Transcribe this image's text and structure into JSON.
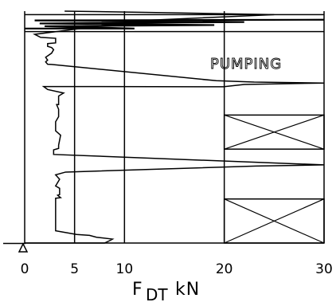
{
  "chart_data": {
    "type": "line",
    "title": "",
    "xlabel": {
      "main": "F",
      "subscript": "DT",
      "unit": "kN"
    },
    "ylabel": "",
    "xlim": [
      0,
      30
    ],
    "ylim": [
      0,
      1
    ],
    "x_ticks": [
      "0",
      "5",
      "10",
      "20",
      "30"
    ],
    "grid": true,
    "zone_label": "PUMPING",
    "x_tick_map": [
      {
        "label": "0",
        "value": 0
      },
      {
        "label": "5",
        "value": 5
      },
      {
        "label": "10",
        "value": 10
      },
      {
        "label": "20",
        "value": 20
      },
      {
        "label": "30",
        "value": 30
      }
    ],
    "series": [
      {
        "points": [
          [
            0.0,
            0.0
          ],
          [
            8.0,
            0.0
          ],
          [
            8.6,
            0.012
          ],
          [
            8.8,
            0.017
          ],
          [
            7.2,
            0.025
          ],
          [
            6.5,
            0.033
          ],
          [
            5.2,
            0.037
          ],
          [
            3.1,
            0.053
          ],
          [
            3.1,
            0.09
          ],
          [
            3.1,
            0.193
          ],
          [
            3.6,
            0.196
          ],
          [
            3.3,
            0.206
          ],
          [
            3.5,
            0.209
          ],
          [
            3.5,
            0.236
          ],
          [
            3.1,
            0.246
          ],
          [
            3.5,
            0.275
          ],
          [
            3.1,
            0.294
          ],
          [
            4.1,
            0.306
          ],
          [
            23.2,
            0.332
          ],
          [
            30.0,
            0.337
          ],
          [
            2.9,
            0.382
          ],
          [
            2.9,
            0.402
          ],
          [
            3.4,
            0.408
          ],
          [
            3.4,
            0.422
          ],
          [
            3.6,
            0.465
          ],
          [
            3.1,
            0.484
          ],
          [
            3.1,
            0.523
          ],
          [
            3.4,
            0.545
          ],
          [
            3.4,
            0.577
          ],
          [
            3.2,
            0.597
          ],
          [
            3.4,
            0.597
          ],
          [
            3.4,
            0.634
          ],
          [
            3.9,
            0.647
          ],
          [
            2.3,
            0.662
          ],
          [
            1.9,
            0.675
          ],
          [
            19.9,
            0.674
          ],
          [
            22.0,
            0.684
          ],
          [
            30.0,
            0.69
          ],
          [
            23.0,
            0.694
          ],
          [
            19.2,
            0.7
          ],
          [
            2.7,
            0.77
          ],
          [
            2.3,
            0.771
          ],
          [
            2.1,
            0.781
          ],
          [
            2.3,
            0.789
          ],
          [
            2.1,
            0.801
          ],
          [
            2.7,
            0.819
          ],
          [
            2.9,
            0.834
          ],
          [
            2.7,
            0.843
          ],
          [
            2.3,
            0.848
          ],
          [
            2.3,
            0.86
          ],
          [
            3.1,
            0.863
          ],
          [
            3.1,
            0.883
          ],
          [
            1.6,
            0.887
          ],
          [
            1.0,
            0.9
          ],
          [
            12.0,
            0.96
          ],
          [
            25.0,
            0.985
          ],
          [
            12.0,
            0.995
          ],
          [
            4.0,
            1.0
          ]
        ]
      }
    ],
    "pumping_band": [
      0.912,
      0.985
    ],
    "pumping_spikes": [
      [
        0.0,
        0.925
      ],
      [
        11.0,
        0.925
      ],
      [
        2.0,
        0.935
      ],
      [
        19.0,
        0.94
      ],
      [
        1.5,
        0.947
      ],
      [
        22.0,
        0.953
      ],
      [
        1.0,
        0.96
      ],
      [
        30.0,
        0.963
      ]
    ],
    "cross_boxes": [
      {
        "x": [
          20,
          30
        ],
        "y": [
          0.0,
          0.19
        ]
      },
      {
        "x": [
          20,
          30
        ],
        "y": [
          0.405,
          0.552
        ]
      }
    ]
  }
}
